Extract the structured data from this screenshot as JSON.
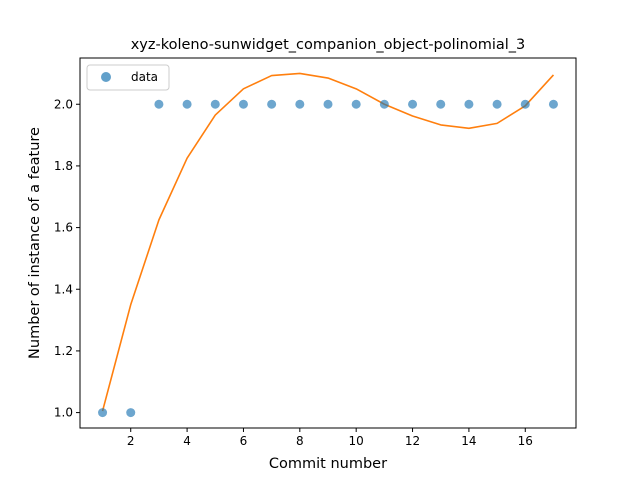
{
  "chart_data": {
    "type": "scatter",
    "title": "xyz-koleno-sunwidget_companion_object-polinomial_3",
    "xlabel": "Commit number",
    "ylabel": "Number of instance of a feature",
    "xlim": [
      0.2,
      17.8
    ],
    "ylim": [
      0.95,
      2.15
    ],
    "xticks": [
      2,
      4,
      6,
      8,
      10,
      12,
      14,
      16
    ],
    "yticks": [
      1.0,
      1.2,
      1.4,
      1.6,
      1.8,
      2.0
    ],
    "xtick_labels": [
      "2",
      "4",
      "6",
      "8",
      "10",
      "12",
      "14",
      "16"
    ],
    "ytick_labels": [
      "1.0",
      "1.2",
      "1.4",
      "1.6",
      "1.8",
      "2.0"
    ],
    "grid": false,
    "legend": {
      "placement": "top-left",
      "entries": [
        "data"
      ]
    },
    "series": [
      {
        "name": "data",
        "kind": "scatter",
        "color": "#1f77b4",
        "x": [
          1,
          2,
          3,
          4,
          5,
          6,
          7,
          8,
          9,
          10,
          11,
          12,
          13,
          14,
          15,
          16,
          17
        ],
        "y": [
          1,
          1,
          2,
          2,
          2,
          2,
          2,
          2,
          2,
          2,
          2,
          2,
          2,
          2,
          2,
          2,
          2
        ]
      },
      {
        "kind": "line",
        "color": "#ff7f0e",
        "x": [
          1,
          2,
          3,
          4,
          5,
          6,
          7,
          8,
          9,
          10,
          11,
          12,
          13,
          14,
          15,
          16,
          17
        ],
        "y": [
          1.005,
          1.35,
          1.625,
          1.825,
          1.965,
          2.05,
          2.093,
          2.1,
          2.085,
          2.05,
          2.0,
          1.962,
          1.933,
          1.922,
          1.938,
          1.995,
          2.095
        ]
      }
    ]
  }
}
